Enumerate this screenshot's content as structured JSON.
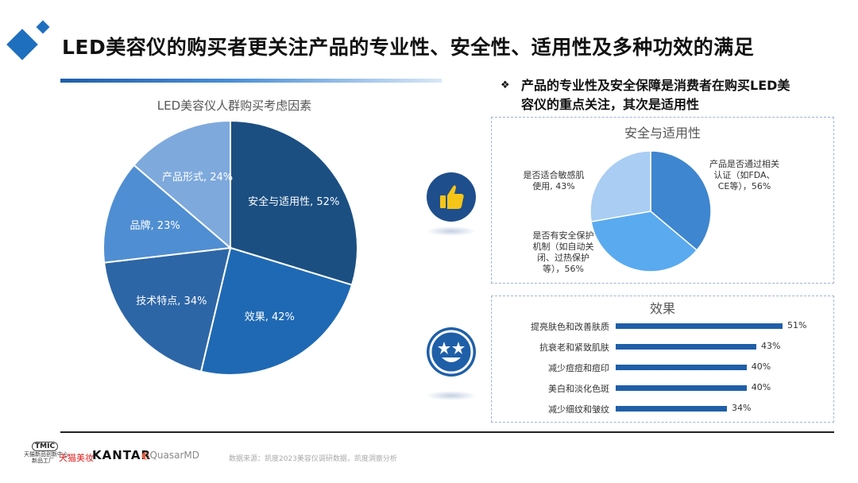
{
  "title": "LED美容仪的购买者更关注产品的专业性、安全性、适用性及多种功效的满足",
  "main_pie": {
    "title": "LED美容仪人群购买考虑因素",
    "slices": [
      {
        "label": "安全与适用性, 52%",
        "value": 52,
        "color": "#1b4f82"
      },
      {
        "label": "效果, 42%",
        "value": 42,
        "color": "#1f69b4"
      },
      {
        "label": "技术特点, 34%",
        "value": 34,
        "color": "#2d66a6"
      },
      {
        "label": "品牌, 23%",
        "value": 23,
        "color": "#4f8ed2"
      },
      {
        "label": "产品形式, 24%",
        "value": 24,
        "color": "#7ea9dc"
      }
    ]
  },
  "bullet": {
    "mark": "❖",
    "line1": "产品的专业性及安全保障是消费者在购买LED美",
    "line2": "容仪的重点关注，其次是适用性"
  },
  "safety_panel": {
    "title": "安全与适用性",
    "slices": [
      {
        "label_lines": [
          "产品是否通过相关",
          "认证（如FDA、",
          "CE等），56%"
        ],
        "value": 56,
        "color": "#3e86cf"
      },
      {
        "label_lines": [
          "是否有安全保护",
          "机制（如自动关",
          "闭、过热保护",
          "等），56%"
        ],
        "value": 56,
        "color": "#5aaaf0"
      },
      {
        "label_lines": [
          "是否适合敏感肌",
          "使用, 43%"
        ],
        "value": 43,
        "color": "#a9cdf3"
      }
    ]
  },
  "effect_panel": {
    "title": "效果",
    "bars": [
      {
        "label": "提亮肤色和改善肤质",
        "value": 51,
        "text": "51%"
      },
      {
        "label": "抗衰老和紧致肌肤",
        "value": 43,
        "text": "43%"
      },
      {
        "label": "减少痘痘和痘印",
        "value": 40,
        "text": "40%"
      },
      {
        "label": "美白和淡化色斑",
        "value": 40,
        "text": "40%"
      },
      {
        "label": "减少细纹和皱纹",
        "value": 34,
        "text": "34%"
      }
    ]
  },
  "footer": {
    "tmic_badge": "TMIC",
    "tmic_text": "天猫新品创新中心",
    "tmic_sub": "新品工厂",
    "tmall_beauty": "天猫美妆",
    "kantar": "KANTAR",
    "quasar": "QuasarMD",
    "source": "数据来源：凯度2023美容仪调研数据，凯度洞察分析"
  },
  "icons": {
    "top": "thumbs-up-icon",
    "bottom": "star-eyes-smile-icon"
  },
  "colors": {
    "accent": "#1f5fa8",
    "dark_navy": "#1f4e8c",
    "bar": "#1f5fa8"
  }
}
